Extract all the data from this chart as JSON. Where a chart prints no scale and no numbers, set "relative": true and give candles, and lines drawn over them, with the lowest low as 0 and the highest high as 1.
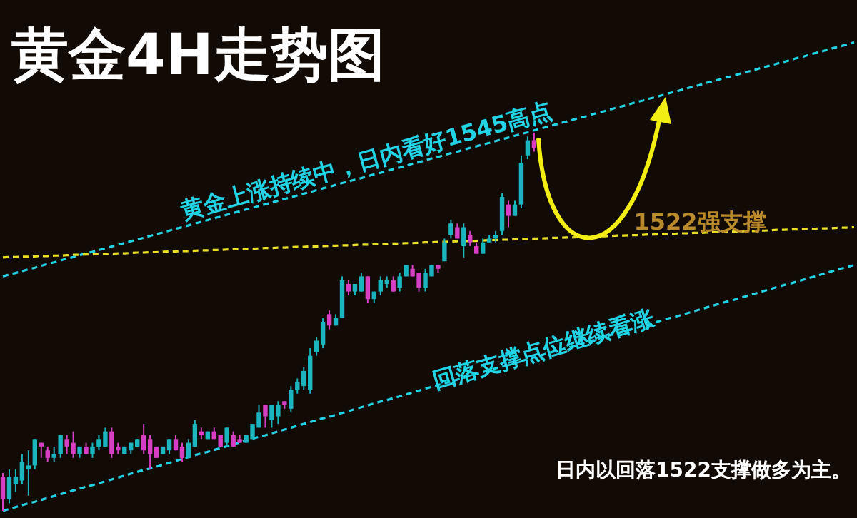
{
  "chart_data": {
    "type": "candlestick",
    "title": "黄金4H走势图",
    "relative": true,
    "annotations": [
      "黄金上涨持续中，日内看好1545高点",
      "1522强支撑",
      "回落支撑点位继续看涨",
      "日内以回落1522支撑做多为主。"
    ],
    "categories": [
      null,
      null,
      null,
      null,
      null,
      null,
      null,
      null,
      null,
      null,
      null,
      null,
      null,
      null,
      null,
      null,
      null,
      null,
      null,
      null,
      null,
      null,
      null,
      null,
      null,
      null,
      null,
      null,
      null,
      null,
      null,
      null,
      null,
      null,
      null,
      null,
      null,
      null,
      null,
      null,
      null,
      null,
      null,
      null,
      null,
      null,
      null,
      null,
      null,
      null,
      null,
      null,
      null,
      null,
      null,
      null,
      null,
      null,
      null,
      null,
      null,
      null,
      null,
      null,
      null,
      null,
      null,
      null,
      null,
      null,
      null,
      null,
      null,
      null,
      null,
      null,
      null,
      null,
      null,
      null,
      null,
      null,
      null,
      null,
      null,
      null,
      null,
      null,
      null,
      null,
      null,
      null,
      null,
      null,
      null,
      null,
      null,
      null,
      null,
      null,
      null,
      null,
      null,
      null,
      null,
      null,
      null,
      null,
      null,
      null,
      null,
      null,
      null,
      null,
      null,
      null,
      null,
      null,
      null,
      null,
      null,
      null,
      null,
      null,
      null,
      null,
      null,
      null,
      null,
      null,
      null,
      null,
      null,
      null
    ],
    "ohlc": [
      [
        0.09,
        0.1,
        0,
        0.03
      ],
      [
        0.03,
        0.11,
        0.02,
        0.09
      ],
      [
        0.07,
        0.11,
        0.05,
        0.09
      ],
      [
        0.08,
        0.15,
        0.07,
        0.13
      ],
      [
        0.11,
        0.16,
        0.04,
        0.12
      ],
      [
        0.12,
        0.19,
        0.11,
        0.19
      ],
      [
        0.18,
        0.18,
        0.14,
        0.17
      ],
      [
        0.16,
        0.17,
        0.13,
        0.14
      ],
      [
        0.14,
        0.17,
        0.13,
        0.15
      ],
      [
        0.15,
        0.2,
        0.14,
        0.2
      ],
      [
        0.19,
        0.2,
        0.15,
        0.17
      ],
      [
        0.18,
        0.21,
        0.14,
        0.15
      ],
      [
        0.15,
        0.17,
        0.14,
        0.17
      ],
      [
        0.17,
        0.18,
        0.15,
        0.15
      ],
      [
        0.15,
        0.18,
        0.14,
        0.17
      ],
      [
        0.17,
        0.2,
        0.16,
        0.19
      ],
      [
        0.17,
        0.22,
        0.17,
        0.21
      ],
      [
        0.21,
        0.22,
        0.14,
        0.15
      ],
      [
        0.17,
        0.18,
        0.15,
        0.16
      ],
      [
        0.15,
        0.17,
        0.15,
        0.17
      ],
      [
        0.16,
        0.18,
        0.15,
        0.18
      ],
      [
        0.17,
        0.19,
        0.17,
        0.19
      ],
      [
        0.2,
        0.23,
        0.15,
        0.16
      ],
      [
        0.19,
        0.2,
        0.11,
        0.15
      ],
      [
        0.17,
        0.17,
        0.14,
        0.14
      ],
      [
        0.15,
        0.17,
        0.15,
        0.17
      ],
      [
        0.16,
        0.19,
        0.15,
        0.19
      ],
      [
        0.19,
        0.2,
        0.16,
        0.16
      ],
      [
        0.17,
        0.18,
        0.13,
        0.14
      ],
      [
        0.14,
        0.19,
        0.14,
        0.18
      ],
      [
        0.17,
        0.24,
        0.17,
        0.23
      ],
      [
        0.21,
        0.22,
        0.19,
        0.2
      ],
      [
        0.19,
        0.21,
        0.19,
        0.21
      ],
      [
        0.21,
        0.22,
        0.19,
        0.19
      ],
      [
        0.2,
        0.2,
        0.17,
        0.17
      ],
      [
        0.18,
        0.22,
        0.17,
        0.22
      ],
      [
        0.2,
        0.21,
        0.17,
        0.17
      ],
      [
        0.19,
        0.2,
        0.18,
        0.18
      ],
      [
        0.18,
        0.2,
        0.18,
        0.2
      ],
      [
        0.19,
        0.23,
        0.19,
        0.23
      ],
      [
        0.22,
        0.28,
        0.22,
        0.26
      ],
      [
        0.28,
        0.28,
        0.22,
        0.25
      ],
      [
        0.24,
        0.28,
        0.22,
        0.28
      ],
      [
        0.25,
        0.29,
        0.23,
        0.28
      ],
      [
        0.29,
        0.29,
        0.27,
        0.28
      ],
      [
        0.27,
        0.33,
        0.26,
        0.32
      ],
      [
        0.32,
        0.35,
        0.31,
        0.34
      ],
      [
        0.33,
        0.38,
        0.32,
        0.37
      ],
      [
        0.32,
        0.43,
        0.31,
        0.41
      ],
      [
        0.42,
        0.46,
        0.41,
        0.45
      ],
      [
        0.44,
        0.51,
        0.43,
        0.5
      ],
      [
        0.52,
        0.53,
        0.48,
        0.49
      ],
      [
        0.49,
        0.52,
        0.49,
        0.51
      ],
      [
        0.51,
        0.62,
        0.51,
        0.61
      ],
      [
        0.6,
        0.61,
        0.57,
        0.58
      ],
      [
        0.58,
        0.6,
        0.57,
        0.6
      ],
      [
        0.58,
        0.63,
        0.58,
        0.62
      ],
      [
        0.62,
        0.62,
        0.55,
        0.56
      ],
      [
        0.56,
        0.58,
        0.55,
        0.58
      ],
      [
        0.58,
        0.62,
        0.57,
        0.61
      ],
      [
        0.6,
        0.62,
        0.59,
        0.61
      ],
      [
        0.61,
        0.62,
        0.58,
        0.58
      ],
      [
        0.59,
        0.63,
        0.58,
        0.62
      ],
      [
        0.62,
        0.65,
        0.62,
        0.65
      ],
      [
        0.64,
        0.65,
        0.62,
        0.62
      ],
      [
        0.63,
        0.63,
        0.58,
        0.59
      ],
      [
        0.59,
        0.64,
        0.58,
        0.63
      ],
      [
        0.62,
        0.65,
        0.62,
        0.65
      ],
      [
        0.65,
        0.65,
        0.63,
        0.64
      ],
      [
        0.66,
        0.72,
        0.66,
        0.71
      ],
      [
        0.73,
        0.77,
        0.72,
        0.76
      ],
      [
        0.75,
        0.76,
        0.72,
        0.72
      ],
      [
        0.7,
        0.76,
        0.67,
        0.75
      ],
      [
        0.73,
        0.74,
        0.7,
        0.71
      ],
      [
        0.7,
        0.71,
        0.68,
        0.68
      ],
      [
        0.68,
        0.72,
        0.68,
        0.71
      ],
      [
        0.71,
        0.73,
        0.71,
        0.72
      ],
      [
        0.72,
        0.74,
        0.71,
        0.73
      ],
      [
        0.74,
        0.84,
        0.73,
        0.83
      ],
      [
        0.81,
        0.82,
        0.75,
        0.78
      ],
      [
        0.78,
        0.82,
        0.78,
        0.81
      ],
      [
        0.81,
        0.94,
        0.8,
        0.92
      ],
      [
        0.94,
        0.99,
        0.93,
        0.98
      ],
      [
        0.98,
        1,
        0.95,
        0.96
      ],
      null,
      null,
      null,
      null,
      null,
      null,
      null,
      null,
      null,
      null,
      null,
      null,
      null,
      null,
      null,
      null,
      null,
      null,
      null,
      null,
      null,
      null,
      null,
      null,
      null,
      null,
      null,
      null,
      null,
      null,
      null,
      null,
      null,
      null,
      null,
      null,
      null,
      null,
      null,
      null,
      null,
      null,
      null,
      null,
      null,
      null,
      null,
      null,
      null,
      null
    ],
    "colors": [
      "#d63fc4",
      "#1bb5c0",
      "#1bb5c0",
      "#1bb5c0",
      "#1bb5c0",
      "#1bb5c0",
      "#d63fc4",
      "#d63fc4",
      "#1bb5c0",
      "#1bb5c0",
      "#d63fc4",
      "#d63fc4",
      "#1bb5c0",
      "#d63fc4",
      "#1bb5c0",
      "#1bb5c0",
      "#1bb5c0",
      "#d63fc4",
      "#d63fc4",
      "#1bb5c0",
      "#1bb5c0",
      "#1bb5c0",
      "#d63fc4",
      "#d63fc4",
      "#d63fc4",
      "#1bb5c0",
      "#1bb5c0",
      "#d63fc4",
      "#d63fc4",
      "#1bb5c0",
      "#1bb5c0",
      "#d63fc4",
      "#1bb5c0",
      "#d63fc4",
      "#d63fc4",
      "#1bb5c0",
      "#d63fc4",
      "#d63fc4",
      "#1bb5c0",
      "#1bb5c0",
      "#1bb5c0",
      "#d63fc4",
      "#1bb5c0",
      "#1bb5c0",
      "#d63fc4",
      "#1bb5c0",
      "#1bb5c0",
      "#1bb5c0",
      "#1bb5c0",
      "#1bb5c0",
      "#1bb5c0",
      "#d63fc4",
      "#1bb5c0",
      "#1bb5c0",
      "#d63fc4",
      "#1bb5c0",
      "#1bb5c0",
      "#d63fc4",
      "#1bb5c0",
      "#1bb5c0",
      "#1bb5c0",
      "#d63fc4",
      "#1bb5c0",
      "#1bb5c0",
      "#d63fc4",
      "#d63fc4",
      "#1bb5c0",
      "#1bb5c0",
      "#d63fc4",
      "#1bb5c0",
      "#1bb5c0",
      "#d63fc4",
      "#1bb5c0",
      "#d63fc4",
      "#d63fc4",
      "#1bb5c0",
      "#1bb5c0",
      "#1bb5c0",
      "#1bb5c0",
      "#d63fc4",
      "#1bb5c0",
      "#1bb5c0",
      "#1bb5c0",
      "#d63fc4",
      null,
      null,
      null,
      null,
      null,
      null,
      null,
      null,
      null,
      null,
      null,
      null,
      null,
      null,
      null,
      null,
      null,
      null,
      null,
      null,
      null,
      null,
      null,
      null,
      null,
      null,
      null,
      null,
      null,
      null,
      null,
      null,
      null,
      null,
      null,
      null,
      null,
      null,
      null,
      null,
      null,
      null,
      null,
      null,
      null,
      null,
      null,
      null,
      null,
      null
    ],
    "series": [
      {
        "type": "line",
        "color": "#22d3e6",
        "line_style": "dashed",
        "values": [
          0.62,
          0.625,
          0.629,
          0.634,
          0.639,
          0.643,
          0.648,
          0.653,
          0.657,
          0.662,
          0.667,
          0.671,
          0.676,
          0.681,
          0.685,
          0.69,
          0.694,
          0.699,
          0.704,
          0.708,
          0.713,
          0.718,
          0.722,
          0.727,
          0.732,
          0.736,
          0.741,
          0.746,
          0.75,
          0.755,
          0.76,
          0.764,
          0.769,
          0.774,
          0.778,
          0.783,
          0.788,
          0.792,
          0.797,
          0.801,
          0.806,
          0.811,
          0.815,
          0.82,
          0.825,
          0.829,
          0.834,
          0.839,
          0.843,
          0.848,
          0.853,
          0.857,
          0.862,
          0.867,
          0.871,
          0.876,
          0.88,
          0.885,
          0.89,
          0.894,
          0.899,
          0.904,
          0.908,
          0.913,
          0.918,
          0.922,
          0.927,
          0.932,
          0.936,
          0.941,
          0.946,
          0.95,
          0.955,
          0.96,
          0.964,
          0.969,
          0.973,
          0.978,
          0.983,
          0.987,
          0.992,
          0.997,
          1.001,
          1.006,
          1.011,
          1.015,
          1.02,
          1.025,
          1.029,
          1.034,
          1.039,
          1.043,
          1.048,
          1.053,
          1.057,
          1.062,
          1.067,
          1.071,
          1.076,
          1.081,
          1.085,
          1.09,
          1.094,
          1.099,
          1.104,
          1.108,
          1.113,
          1.118,
          1.122,
          1.127,
          1.132,
          1.136,
          1.141,
          1.146,
          1.15,
          1.155,
          1.16,
          1.164,
          1.169,
          1.174,
          1.178,
          1.183,
          1.187,
          1.192,
          1.197,
          1.201,
          1.206,
          1.211,
          1.215,
          1.22,
          1.225,
          1.229,
          1.234,
          1.239
        ]
      },
      {
        "type": "line",
        "color": "#e8e020",
        "line_style": "dashed",
        "values": [
          0.67,
          0.671,
          0.671,
          0.672,
          0.672,
          0.673,
          0.674,
          0.674,
          0.675,
          0.675,
          0.676,
          0.677,
          0.677,
          0.678,
          0.678,
          0.679,
          0.68,
          0.68,
          0.681,
          0.681,
          0.682,
          0.683,
          0.683,
          0.684,
          0.684,
          0.685,
          0.686,
          0.686,
          0.687,
          0.687,
          0.688,
          0.689,
          0.689,
          0.69,
          0.69,
          0.691,
          0.692,
          0.692,
          0.693,
          0.693,
          0.694,
          0.695,
          0.695,
          0.696,
          0.696,
          0.697,
          0.698,
          0.698,
          0.699,
          0.699,
          0.7,
          0.701,
          0.701,
          0.702,
          0.702,
          0.703,
          0.704,
          0.704,
          0.705,
          0.705,
          0.706,
          0.707,
          0.707,
          0.708,
          0.708,
          0.709,
          0.71,
          0.71,
          0.711,
          0.711,
          0.712,
          0.713,
          0.713,
          0.714,
          0.714,
          0.715,
          0.716,
          0.716,
          0.717,
          0.717,
          0.718,
          0.719,
          0.719,
          0.72,
          0.72,
          0.721,
          0.722,
          0.722,
          0.723,
          0.723,
          0.724,
          0.725,
          0.725,
          0.726,
          0.726,
          0.727,
          0.728,
          0.728,
          0.729,
          0.729,
          0.73,
          0.731,
          0.731,
          0.732,
          0.732,
          0.733,
          0.734,
          0.734,
          0.735,
          0.735,
          0.736,
          0.737,
          0.737,
          0.738,
          0.738,
          0.739,
          0.74,
          0.74,
          0.741,
          0.741,
          0.742,
          0.743,
          0.743,
          0.744,
          0.744,
          0.745,
          0.746,
          0.746,
          0.747,
          0.747,
          0.748,
          0.749,
          0.749,
          0.75
        ]
      },
      {
        "type": "line",
        "color": "#22d3e6",
        "line_style": "dashed",
        "values": [
          0.0,
          0.005,
          0.01,
          0.015,
          0.02,
          0.024,
          0.029,
          0.034,
          0.039,
          0.044,
          0.049,
          0.054,
          0.059,
          0.064,
          0.068,
          0.073,
          0.078,
          0.083,
          0.088,
          0.093,
          0.098,
          0.103,
          0.108,
          0.112,
          0.117,
          0.122,
          0.127,
          0.132,
          0.137,
          0.142,
          0.147,
          0.152,
          0.156,
          0.161,
          0.166,
          0.171,
          0.176,
          0.181,
          0.186,
          0.191,
          0.196,
          0.2,
          0.205,
          0.21,
          0.215,
          0.22,
          0.225,
          0.23,
          0.235,
          0.24,
          0.245,
          0.249,
          0.254,
          0.259,
          0.264,
          0.269,
          0.274,
          0.279,
          0.284,
          0.289,
          0.293,
          0.298,
          0.303,
          0.308,
          0.313,
          0.318,
          0.323,
          0.328,
          0.333,
          0.337,
          0.342,
          0.347,
          0.352,
          0.357,
          0.362,
          0.367,
          0.372,
          0.377,
          0.381,
          0.386,
          0.391,
          0.396,
          0.401,
          0.406,
          0.411,
          0.416,
          0.421,
          0.425,
          0.43,
          0.435,
          0.44,
          0.445,
          0.45,
          0.455,
          0.46,
          0.465,
          0.469,
          0.474,
          0.479,
          0.484,
          0.489,
          0.494,
          0.499,
          0.504,
          0.509,
          0.513,
          0.518,
          0.523,
          0.528,
          0.533,
          0.538,
          0.543,
          0.548,
          0.553,
          0.557,
          0.562,
          0.567,
          0.572,
          0.577,
          0.582,
          0.587,
          0.592,
          0.597,
          0.601,
          0.606,
          0.611,
          0.616,
          0.621,
          0.626,
          0.631,
          0.636,
          0.641,
          0.645,
          0.65
        ]
      }
    ]
  }
}
